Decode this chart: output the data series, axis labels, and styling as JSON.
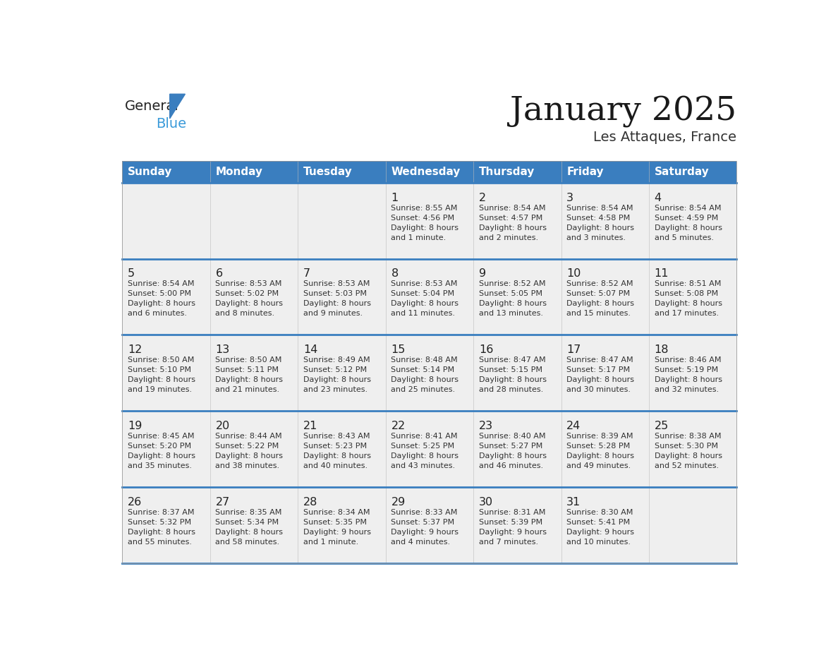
{
  "title": "January 2025",
  "subtitle": "Les Attaques, France",
  "days_of_week": [
    "Sunday",
    "Monday",
    "Tuesday",
    "Wednesday",
    "Thursday",
    "Friday",
    "Saturday"
  ],
  "header_bg": "#3A7EBF",
  "header_text": "#FFFFFF",
  "row_bg": "#EFEFEF",
  "separator_color": "#3A7EBF",
  "day_number_color": "#222222",
  "cell_text_color": "#333333",
  "logo_general_color": "#222222",
  "logo_blue_color": "#3A9AD9",
  "logo_triangle_color": "#3A7EBF",
  "weeks": [
    {
      "days": [
        {
          "day": null,
          "info": null
        },
        {
          "day": null,
          "info": null
        },
        {
          "day": null,
          "info": null
        },
        {
          "day": 1,
          "info": "Sunrise: 8:55 AM\nSunset: 4:56 PM\nDaylight: 8 hours\nand 1 minute."
        },
        {
          "day": 2,
          "info": "Sunrise: 8:54 AM\nSunset: 4:57 PM\nDaylight: 8 hours\nand 2 minutes."
        },
        {
          "day": 3,
          "info": "Sunrise: 8:54 AM\nSunset: 4:58 PM\nDaylight: 8 hours\nand 3 minutes."
        },
        {
          "day": 4,
          "info": "Sunrise: 8:54 AM\nSunset: 4:59 PM\nDaylight: 8 hours\nand 5 minutes."
        }
      ]
    },
    {
      "days": [
        {
          "day": 5,
          "info": "Sunrise: 8:54 AM\nSunset: 5:00 PM\nDaylight: 8 hours\nand 6 minutes."
        },
        {
          "day": 6,
          "info": "Sunrise: 8:53 AM\nSunset: 5:02 PM\nDaylight: 8 hours\nand 8 minutes."
        },
        {
          "day": 7,
          "info": "Sunrise: 8:53 AM\nSunset: 5:03 PM\nDaylight: 8 hours\nand 9 minutes."
        },
        {
          "day": 8,
          "info": "Sunrise: 8:53 AM\nSunset: 5:04 PM\nDaylight: 8 hours\nand 11 minutes."
        },
        {
          "day": 9,
          "info": "Sunrise: 8:52 AM\nSunset: 5:05 PM\nDaylight: 8 hours\nand 13 minutes."
        },
        {
          "day": 10,
          "info": "Sunrise: 8:52 AM\nSunset: 5:07 PM\nDaylight: 8 hours\nand 15 minutes."
        },
        {
          "day": 11,
          "info": "Sunrise: 8:51 AM\nSunset: 5:08 PM\nDaylight: 8 hours\nand 17 minutes."
        }
      ]
    },
    {
      "days": [
        {
          "day": 12,
          "info": "Sunrise: 8:50 AM\nSunset: 5:10 PM\nDaylight: 8 hours\nand 19 minutes."
        },
        {
          "day": 13,
          "info": "Sunrise: 8:50 AM\nSunset: 5:11 PM\nDaylight: 8 hours\nand 21 minutes."
        },
        {
          "day": 14,
          "info": "Sunrise: 8:49 AM\nSunset: 5:12 PM\nDaylight: 8 hours\nand 23 minutes."
        },
        {
          "day": 15,
          "info": "Sunrise: 8:48 AM\nSunset: 5:14 PM\nDaylight: 8 hours\nand 25 minutes."
        },
        {
          "day": 16,
          "info": "Sunrise: 8:47 AM\nSunset: 5:15 PM\nDaylight: 8 hours\nand 28 minutes."
        },
        {
          "day": 17,
          "info": "Sunrise: 8:47 AM\nSunset: 5:17 PM\nDaylight: 8 hours\nand 30 minutes."
        },
        {
          "day": 18,
          "info": "Sunrise: 8:46 AM\nSunset: 5:19 PM\nDaylight: 8 hours\nand 32 minutes."
        }
      ]
    },
    {
      "days": [
        {
          "day": 19,
          "info": "Sunrise: 8:45 AM\nSunset: 5:20 PM\nDaylight: 8 hours\nand 35 minutes."
        },
        {
          "day": 20,
          "info": "Sunrise: 8:44 AM\nSunset: 5:22 PM\nDaylight: 8 hours\nand 38 minutes."
        },
        {
          "day": 21,
          "info": "Sunrise: 8:43 AM\nSunset: 5:23 PM\nDaylight: 8 hours\nand 40 minutes."
        },
        {
          "day": 22,
          "info": "Sunrise: 8:41 AM\nSunset: 5:25 PM\nDaylight: 8 hours\nand 43 minutes."
        },
        {
          "day": 23,
          "info": "Sunrise: 8:40 AM\nSunset: 5:27 PM\nDaylight: 8 hours\nand 46 minutes."
        },
        {
          "day": 24,
          "info": "Sunrise: 8:39 AM\nSunset: 5:28 PM\nDaylight: 8 hours\nand 49 minutes."
        },
        {
          "day": 25,
          "info": "Sunrise: 8:38 AM\nSunset: 5:30 PM\nDaylight: 8 hours\nand 52 minutes."
        }
      ]
    },
    {
      "days": [
        {
          "day": 26,
          "info": "Sunrise: 8:37 AM\nSunset: 5:32 PM\nDaylight: 8 hours\nand 55 minutes."
        },
        {
          "day": 27,
          "info": "Sunrise: 8:35 AM\nSunset: 5:34 PM\nDaylight: 8 hours\nand 58 minutes."
        },
        {
          "day": 28,
          "info": "Sunrise: 8:34 AM\nSunset: 5:35 PM\nDaylight: 9 hours\nand 1 minute."
        },
        {
          "day": 29,
          "info": "Sunrise: 8:33 AM\nSunset: 5:37 PM\nDaylight: 9 hours\nand 4 minutes."
        },
        {
          "day": 30,
          "info": "Sunrise: 8:31 AM\nSunset: 5:39 PM\nDaylight: 9 hours\nand 7 minutes."
        },
        {
          "day": 31,
          "info": "Sunrise: 8:30 AM\nSunset: 5:41 PM\nDaylight: 9 hours\nand 10 minutes."
        },
        {
          "day": null,
          "info": null
        }
      ]
    }
  ]
}
